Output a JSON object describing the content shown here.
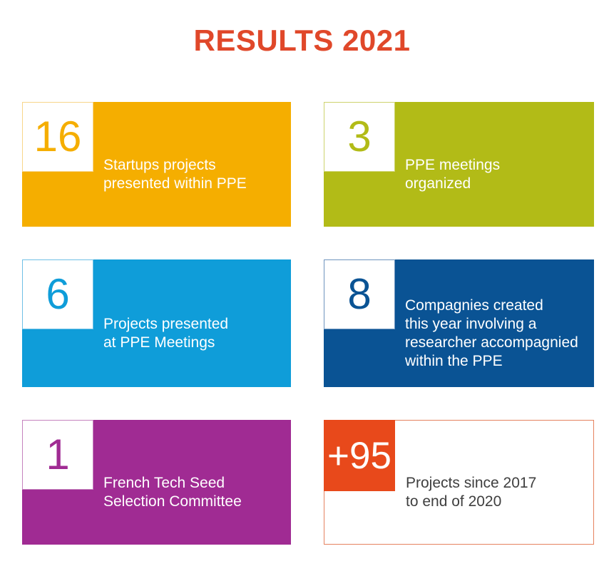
{
  "title": {
    "text": "RESULTS 2021",
    "color": "#E0482A"
  },
  "page_background": "#FFFFFF",
  "tiles": [
    {
      "name": "startups-projects",
      "number": "16",
      "lines": [
        "Startups projects",
        "presented within PPE"
      ],
      "color": "#F5AE00",
      "square_border": "#F8D68A",
      "text_color": "#FFFFFF"
    },
    {
      "name": "ppe-meetings",
      "number": "3",
      "lines": [
        "PPE meetings",
        "organized"
      ],
      "color": "#B2BB17",
      "square_border": "#CDD36E",
      "text_color": "#FFFFFF"
    },
    {
      "name": "projects-presented",
      "number": "6",
      "lines": [
        "Projects presented",
        "at PPE Meetings"
      ],
      "color": "#0F9DD9",
      "square_border": "#6FC0E6",
      "text_color": "#FFFFFF"
    },
    {
      "name": "companies-created",
      "number": "8",
      "lines": [
        "Compagnies created",
        "this year involving a",
        "researcher accompagnied",
        "within the PPE"
      ],
      "color": "#0A5394",
      "square_border": "#6E94BE",
      "text_color": "#FFFFFF"
    },
    {
      "name": "french-tech-seed",
      "number": "1",
      "lines": [
        "French Tech Seed",
        "Selection Committee"
      ],
      "color": "#A02B93",
      "square_border": "#C583BE",
      "text_color": "#FFFFFF"
    },
    {
      "name": "projects-since-2017",
      "number": "+95",
      "lines": [
        "Projects since 2017",
        "to end of 2020"
      ],
      "color": "#E8491B",
      "outline_border": "#E5825F",
      "text_color": "#3F3F3F"
    }
  ]
}
